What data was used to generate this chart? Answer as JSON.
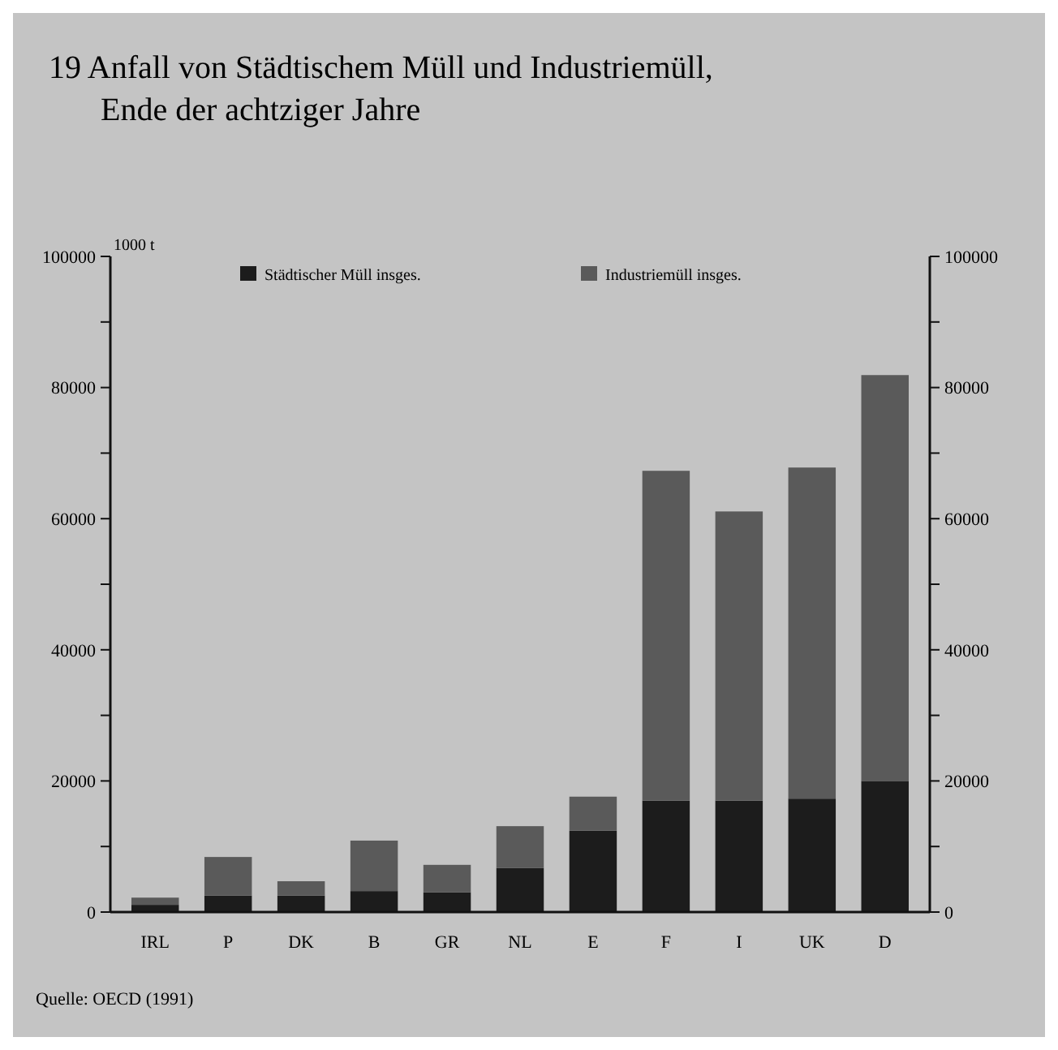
{
  "chart_data": {
    "type": "bar",
    "title": "19 Anfall von Städtischem Müll und Industriemüll,\nEnde der achtziger Jahre",
    "ylabel": "1000 t",
    "stacked": true,
    "legend": "top",
    "grid": false,
    "categories": [
      "IRL",
      "P",
      "DK",
      "B",
      "GR",
      "NL",
      "E",
      "F",
      "I",
      "UK",
      "D"
    ],
    "series": [
      {
        "name": "Städtischer Müll insges.",
        "color": "#1c1c1c",
        "values": [
          1100,
          2500,
          2500,
          3200,
          3000,
          6700,
          12400,
          17000,
          17000,
          17300,
          20000
        ]
      },
      {
        "name": "Industriemüll insges.",
        "color": "#5a5a5a",
        "values": [
          1100,
          5900,
          2200,
          7700,
          4200,
          6400,
          5200,
          50300,
          44100,
          50500,
          61900
        ]
      }
    ],
    "ylim": [
      0,
      100000
    ],
    "yticks": [
      0,
      {
        "value": 10000,
        "label": null
      },
      20000,
      {
        "value": 30000,
        "label": null
      },
      40000,
      {
        "value": 50000,
        "label": null
      },
      60000,
      {
        "value": 70000,
        "label": null
      },
      80000,
      {
        "value": 90000,
        "label": null
      },
      100000
    ],
    "y2lim": [
      0,
      100000
    ],
    "y2ticks": [
      0,
      {
        "value": 10000,
        "label": null
      },
      20000,
      {
        "value": 30000,
        "label": null
      },
      40000,
      {
        "value": 50000,
        "label": null
      },
      60000,
      {
        "value": 70000,
        "label": null
      },
      80000,
      {
        "value": 90000,
        "label": null
      },
      100000
    ],
    "annotations": [
      "Quelle: OECD (1991)"
    ]
  }
}
